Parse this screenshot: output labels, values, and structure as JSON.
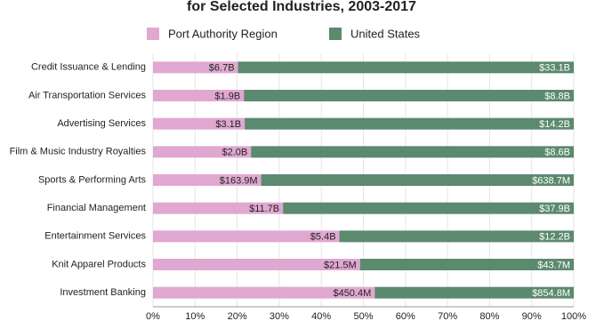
{
  "chart_data": {
    "type": "stacked-bar-horizontal",
    "title": "for Selected Industries, 2003-2017",
    "categories": [
      "Credit Issuance & Lending",
      "Air Transportation Services",
      "Advertising Services",
      "Film & Music Industry Royalties",
      "Sports & Performing Arts",
      "Financial Management",
      "Entertainment Services",
      "Knit Apparel Products",
      "Investment Banking"
    ],
    "series": [
      {
        "name": "Port Authority Region",
        "color": "#e0a8d0",
        "values": [
          20.2,
          21.6,
          21.8,
          23.3,
          25.7,
          30.9,
          44.3,
          49.2,
          52.7
        ],
        "value_labels": [
          "$6.7B",
          "$1.9B",
          "$3.1B",
          "$2.0B",
          "$163.9M",
          "$11.7B",
          "$5.4B",
          "$21.5M",
          "$450.4M"
        ]
      },
      {
        "name": "United States",
        "color": "#5b8a6e",
        "values": [
          79.8,
          78.4,
          78.2,
          76.7,
          74.3,
          69.1,
          55.7,
          50.8,
          47.3
        ],
        "value_labels": [
          "$33.1B",
          "$8.8B",
          "$14.2B",
          "$8.6B",
          "$638.7M",
          "$37.9B",
          "$12.2B",
          "$43.7M",
          "$854.8M"
        ]
      }
    ],
    "xlim": [
      0,
      100
    ],
    "xticks": [
      {
        "value": 0,
        "label": "0%"
      },
      {
        "value": 10,
        "label": "10%"
      },
      {
        "value": 20,
        "label": "20%"
      },
      {
        "value": 30,
        "label": "30%"
      },
      {
        "value": 40,
        "label": "40%"
      },
      {
        "value": 50,
        "label": "50%"
      },
      {
        "value": 60,
        "label": "60%"
      },
      {
        "value": 70,
        "label": "70%"
      },
      {
        "value": 80,
        "label": "80%"
      },
      {
        "value": 90,
        "label": "90%"
      },
      {
        "value": 100,
        "label": "100%"
      }
    ],
    "grid": true
  }
}
